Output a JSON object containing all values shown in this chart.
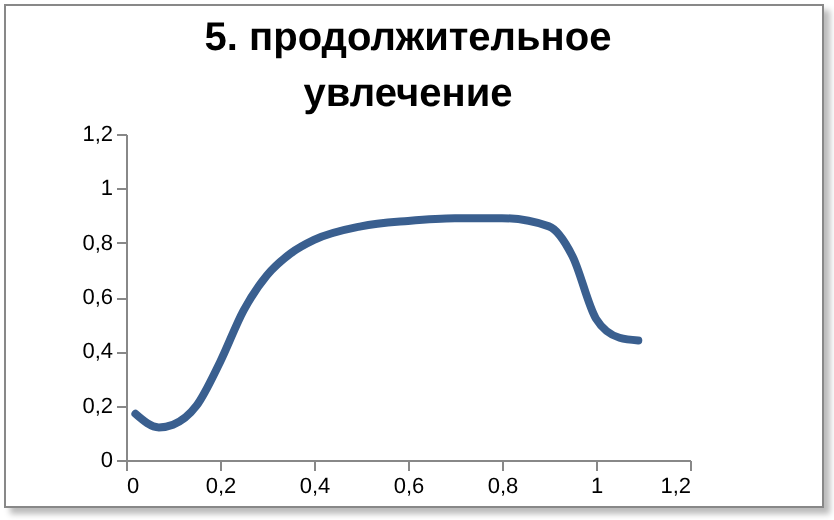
{
  "chart_data": {
    "type": "line",
    "title": "5. продолжительное увлечение",
    "x": [
      0.02,
      0.07,
      0.1,
      0.15,
      0.2,
      0.25,
      0.3,
      0.35,
      0.4,
      0.5,
      0.6,
      0.7,
      0.8,
      0.9,
      0.95,
      1.0,
      1.05,
      1.09
    ],
    "series": [
      {
        "color": "#3a5f8f",
        "values": [
          0.17,
          0.12,
          0.13,
          0.2,
          0.36,
          0.55,
          0.68,
          0.76,
          0.81,
          0.86,
          0.88,
          0.89,
          0.89,
          0.86,
          0.75,
          0.52,
          0.45,
          0.44
        ]
      }
    ],
    "xlim": [
      0,
      1.2
    ],
    "ylim": [
      0,
      1.2
    ],
    "xticks": [
      0,
      {
        "value": 0.2,
        "label": "0,2"
      },
      {
        "value": 0.4,
        "label": "0,4"
      },
      {
        "value": 0.6,
        "label": "0,6"
      },
      {
        "value": 0.8,
        "label": "0,8"
      },
      1,
      {
        "value": 1.2,
        "label": "1,2"
      }
    ],
    "yticks": [
      0,
      {
        "value": 0.2,
        "label": "0,2"
      },
      {
        "value": 0.4,
        "label": "0,4"
      },
      {
        "value": 0.6,
        "label": "0,6"
      },
      {
        "value": 0.8,
        "label": "0,8"
      },
      1,
      {
        "value": 1.2,
        "label": "1,2"
      }
    ],
    "grid": false,
    "marker": "none",
    "line_style": "solid"
  }
}
